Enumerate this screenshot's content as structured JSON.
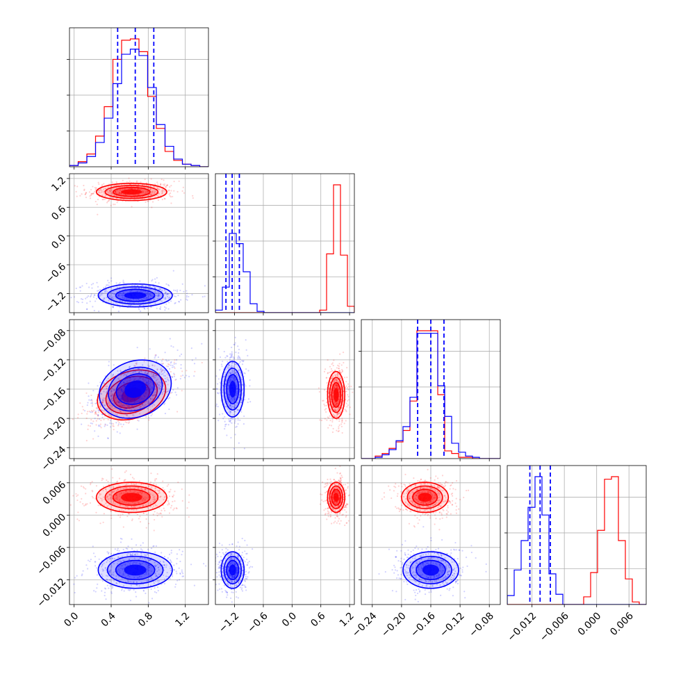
{
  "chart_data": {
    "type": "corner",
    "grid": true,
    "series": [
      {
        "name": "",
        "color": "#ff0000"
      },
      {
        "name": "",
        "color": "#0000ff"
      }
    ],
    "params": [
      {
        "range": [
          -0.05,
          1.45
        ],
        "ticks": [
          0.0,
          0.4,
          0.8,
          1.2
        ],
        "tick_labels": [
          "0.0",
          "0.4",
          "0.8",
          "1.2"
        ]
      },
      {
        "range": [
          -1.6,
          1.3
        ],
        "ticks": [
          -1.2,
          -0.6,
          0.0,
          0.6,
          1.2
        ],
        "tick_labels": [
          "−1.2",
          "−0.6",
          "0.0",
          "0.6",
          "1.2"
        ]
      },
      {
        "range": [
          -0.255,
          -0.065
        ],
        "ticks": [
          -0.24,
          -0.2,
          -0.16,
          -0.12,
          -0.08
        ],
        "tick_labels": [
          "−0.24",
          "−0.20",
          "−0.16",
          "−0.12",
          "−0.08"
        ]
      },
      {
        "range": [
          -0.0166,
          0.0092
        ],
        "ticks": [
          -0.012,
          -0.006,
          0.0,
          0.006
        ],
        "tick_labels": [
          "−0.012",
          "−0.006",
          "0.000",
          "0.006"
        ]
      }
    ],
    "diag_hist": [
      {
        "bins": [
          -0.05,
          0.04375,
          0.1375,
          0.23125,
          0.325,
          0.41875,
          0.5125,
          0.60625,
          0.7,
          0.79375,
          0.8875,
          0.98125,
          1.075,
          1.16875,
          1.2625,
          1.35625,
          1.45
        ],
        "series_counts": [
          [
            0.01,
            0.04,
            0.1,
            0.24,
            0.47,
            0.84,
            0.99,
            1.0,
            0.9,
            0.55,
            0.3,
            0.12,
            0.05,
            0.02,
            0.01,
            0.0
          ],
          [
            0.01,
            0.03,
            0.08,
            0.19,
            0.38,
            0.65,
            0.88,
            0.92,
            0.87,
            0.62,
            0.33,
            0.16,
            0.06,
            0.02,
            0.01,
            0.0
          ]
        ],
        "quantiles": [
          0.47,
          0.66,
          0.86
        ]
      },
      {
        "bins": [
          -1.6,
          -1.455,
          -1.31,
          -1.165,
          -1.02,
          -0.875,
          -0.73,
          -0.585,
          -0.44,
          -0.295,
          -0.15,
          -0.005,
          0.14,
          0.285,
          0.43,
          0.575,
          0.72,
          0.865,
          1.01,
          1.155,
          1.3
        ],
        "series_counts": [
          [
            0,
            0,
            0,
            0,
            0,
            0,
            0,
            0,
            0,
            0,
            0,
            0,
            0,
            0,
            0,
            0.02,
            0.46,
            1.0,
            0.45,
            0.05
          ],
          [
            0.02,
            0.2,
            0.62,
            0.54,
            0.32,
            0.07,
            0.01,
            0,
            0,
            0,
            0,
            0,
            0,
            0,
            0,
            0,
            0,
            0,
            0,
            0
          ]
        ],
        "quantiles": [
          -1.38,
          -1.25,
          -1.1
        ]
      },
      {
        "bins": [
          -0.255,
          -0.2455,
          -0.236,
          -0.2265,
          -0.217,
          -0.2075,
          -0.198,
          -0.1885,
          -0.179,
          -0.1695,
          -0.16,
          -0.1505,
          -0.141,
          -0.1315,
          -0.122,
          -0.1125,
          -0.103,
          -0.0935,
          -0.084,
          -0.0745,
          -0.065
        ],
        "series_counts": [
          [
            0,
            0,
            0.02,
            0.04,
            0.08,
            0.13,
            0.22,
            0.45,
            1.0,
            1.0,
            1.0,
            0.5,
            0.06,
            0.04,
            0.01,
            0.01,
            0,
            0,
            0,
            0
          ],
          [
            0,
            0,
            0.01,
            0.03,
            0.07,
            0.14,
            0.25,
            0.48,
            0.98,
            0.98,
            0.98,
            0.57,
            0.33,
            0.12,
            0.05,
            0.02,
            0.01,
            0,
            0,
            0
          ]
        ],
        "quantiles": [
          -0.178,
          -0.16,
          -0.142
        ]
      },
      {
        "bins": [
          -0.0166,
          -0.01531,
          -0.01402,
          -0.01273,
          -0.01144,
          -0.01015,
          -0.00886,
          -0.00757,
          -0.00628,
          -0.00499,
          -0.0037,
          -0.00241,
          -0.00112,
          0.00017,
          0.00146,
          0.00275,
          0.00404,
          0.00533,
          0.00662,
          0.00791,
          0.0092
        ],
        "series_counts": [
          [
            0,
            0,
            0,
            0,
            0,
            0,
            0,
            0,
            0,
            0,
            0,
            0.06,
            0.25,
            0.58,
            0.98,
            1.0,
            0.5,
            0.2,
            0.02,
            0
          ],
          [
            0.07,
            0.27,
            0.5,
            0.76,
            1.0,
            0.7,
            0.24,
            0.08,
            0,
            0,
            0,
            0,
            0,
            0,
            0,
            0,
            0,
            0,
            0,
            0
          ]
        ],
        "quantiles": [
          -0.0124,
          -0.0105,
          -0.0086
        ]
      }
    ],
    "clusters": [
      {
        "color": "#ff0000",
        "means": [
          0.62,
          0.92,
          -0.168,
          0.0033
        ],
        "sds": [
          0.19,
          0.09,
          0.016,
          0.0014
        ],
        "corr_01": 0.58
      },
      {
        "color": "#0000ff",
        "means": [
          0.66,
          -1.24,
          -0.16,
          -0.0102
        ],
        "sds": [
          0.2,
          0.12,
          0.019,
          0.0017
        ],
        "corr_01": 0.58
      }
    ]
  }
}
